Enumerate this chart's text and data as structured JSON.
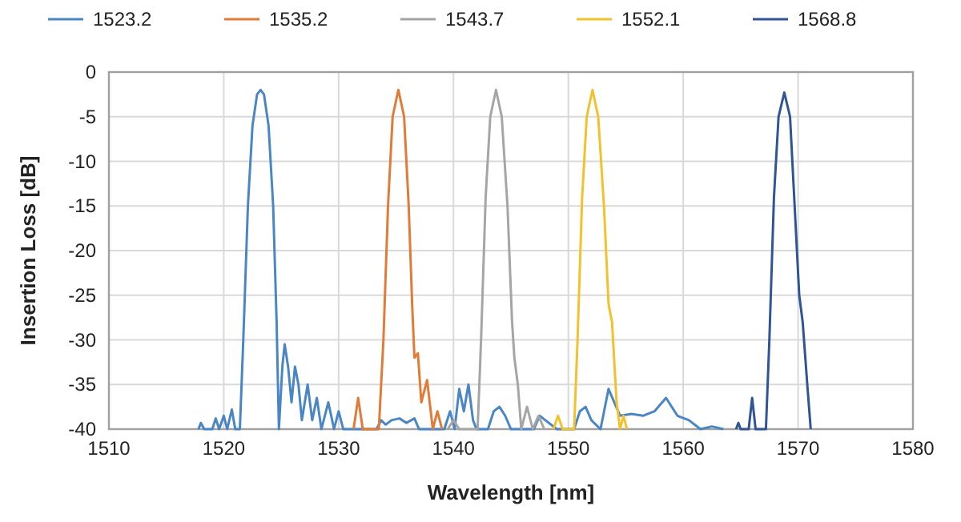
{
  "chart_data": {
    "type": "line",
    "xlabel": "Wavelength [nm]",
    "ylabel": "Insertion Loss [dB]",
    "xlim": [
      1510,
      1580
    ],
    "xticks": [
      1510,
      1520,
      1530,
      1540,
      1550,
      1560,
      1570,
      1580
    ],
    "ylim": [
      -40,
      0
    ],
    "yticks": [
      -40,
      -35,
      -30,
      -25,
      -20,
      -15,
      -10,
      -5,
      0
    ],
    "grid": true,
    "legend": "top",
    "marker": "none",
    "line_style": "solid",
    "series": [
      {
        "name": "1523.2",
        "color": "#4a86c5",
        "x": [
          1517.8,
          1518.0,
          1518.3,
          1519.0,
          1519.3,
          1519.6,
          1520.0,
          1520.3,
          1520.7,
          1521.0,
          1521.4,
          1521.7,
          1522.1,
          1522.5,
          1522.9,
          1523.2,
          1523.5,
          1523.9,
          1524.3,
          1524.6,
          1524.8,
          1525.1,
          1525.3,
          1525.6,
          1525.9,
          1526.2,
          1526.5,
          1526.8,
          1527.3,
          1527.7,
          1528.1,
          1528.5,
          1529.1,
          1529.6,
          1530.0,
          1530.4,
          1533.3,
          1533.7,
          1534.1,
          1534.6,
          1535.3,
          1535.9,
          1536.6,
          1537.0,
          1539.2,
          1539.7,
          1540.1,
          1540.5,
          1540.9,
          1541.3,
          1541.7,
          1542.0,
          1543.0,
          1543.5,
          1544.0,
          1544.5,
          1545.0,
          1547.0,
          1547.5,
          1548.0,
          1549.0,
          1550.5,
          1551.0,
          1551.5,
          1552.0,
          1552.8,
          1553.5,
          1554.0,
          1554.5,
          1555.5,
          1556.5,
          1557.5,
          1558.5,
          1559.5,
          1560.5,
          1561.5,
          1562.5,
          1563.5
        ],
        "values": [
          -40,
          -39.3,
          -40,
          -40,
          -38.8,
          -40,
          -38.5,
          -40,
          -37.8,
          -40,
          -40,
          -30,
          -15,
          -6,
          -2.5,
          -2,
          -2.5,
          -6,
          -15,
          -28,
          -40,
          -33,
          -30.5,
          -33,
          -37,
          -33,
          -35,
          -39,
          -35,
          -39,
          -36.5,
          -40,
          -37,
          -40,
          -38,
          -40,
          -40,
          -39,
          -39.5,
          -39,
          -38.8,
          -39.3,
          -38.8,
          -40,
          -40,
          -38,
          -40,
          -35.5,
          -38,
          -35,
          -39,
          -40,
          -40,
          -38,
          -37.5,
          -38.5,
          -40,
          -40,
          -38.5,
          -39,
          -40,
          -40,
          -38,
          -37.5,
          -39,
          -40,
          -35.5,
          -37,
          -38.5,
          -38.3,
          -38.5,
          -38,
          -36.5,
          -38.5,
          -39,
          -40,
          -39.7,
          -40
        ]
      },
      {
        "name": "1535.2",
        "color": "#e07b39",
        "x": [
          1531.3,
          1531.7,
          1532.1,
          1533.5,
          1533.9,
          1534.3,
          1534.7,
          1535.2,
          1535.7,
          1536.1,
          1536.4,
          1536.6,
          1536.9,
          1537.2,
          1537.7,
          1538.2,
          1538.6,
          1539.0
        ],
        "values": [
          -40,
          -36.5,
          -40,
          -40,
          -30,
          -15,
          -5,
          -2,
          -5,
          -15,
          -26,
          -32,
          -31.5,
          -37,
          -34.5,
          -40,
          -38,
          -40
        ]
      },
      {
        "name": "1543.7",
        "color": "#a5a5a5",
        "x": [
          1539.5,
          1540.0,
          1540.5,
          1542.1,
          1542.4,
          1542.8,
          1543.2,
          1543.7,
          1544.2,
          1544.7,
          1545.1,
          1545.3,
          1545.6,
          1545.9,
          1546.4,
          1546.9,
          1547.4,
          1547.9
        ],
        "values": [
          -40,
          -39,
          -40,
          -40,
          -30,
          -14,
          -5,
          -2,
          -5,
          -15,
          -28,
          -32,
          -35,
          -40,
          -37.5,
          -40,
          -38.5,
          -40
        ]
      },
      {
        "name": "1552.1",
        "color": "#f2c12e",
        "x": [
          1548.7,
          1549.1,
          1549.5,
          1550.5,
          1550.8,
          1551.2,
          1551.6,
          1552.1,
          1552.6,
          1553.1,
          1553.5,
          1553.8,
          1554.2,
          1554.5,
          1554.8,
          1555.1
        ],
        "values": [
          -40,
          -38.5,
          -40,
          -40,
          -30,
          -14,
          -5,
          -2,
          -5,
          -15,
          -26,
          -28,
          -37,
          -40,
          -38.5,
          -40
        ]
      },
      {
        "name": "1568.8",
        "color": "#2f5597",
        "x": [
          1564.6,
          1564.8,
          1565.0,
          1565.7,
          1566.0,
          1566.3,
          1567.2,
          1567.5,
          1567.9,
          1568.3,
          1568.8,
          1569.3,
          1569.7,
          1570.1,
          1570.4,
          1570.8,
          1571.1
        ],
        "values": [
          -40,
          -39.3,
          -40,
          -40,
          -36.5,
          -40,
          -40,
          -30,
          -14,
          -5,
          -2.3,
          -5,
          -15,
          -25,
          -28,
          -35,
          -40
        ]
      }
    ]
  }
}
